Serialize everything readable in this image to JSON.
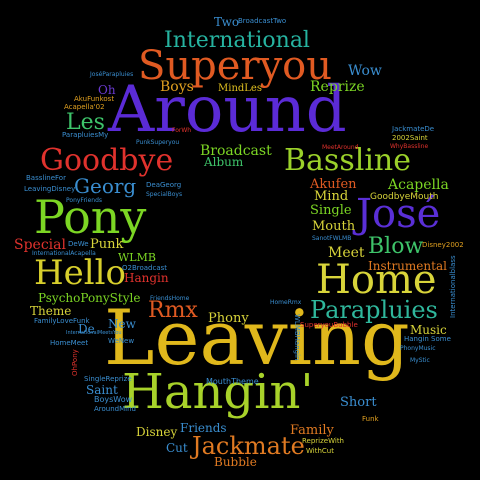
{
  "cloud": {
    "words": [
      {
        "id": "w_around",
        "text": "Around",
        "color": "#5b2bd6"
      },
      {
        "id": "w_leaving",
        "text": "Leaving",
        "color": "#e0b81c"
      },
      {
        "id": "w_hangin",
        "text": "Hangin'",
        "color": "#a8d22a"
      },
      {
        "id": "w_superyou",
        "text": "Superyou",
        "color": "#e05a22"
      },
      {
        "id": "w_international",
        "text": "International",
        "color": "#26b3a0"
      },
      {
        "id": "w_bassline",
        "text": "Bassline",
        "color": "#9bd12a"
      },
      {
        "id": "w_goodbye",
        "text": "Goodbye",
        "color": "#e0322d"
      },
      {
        "id": "w_pony",
        "text": "Pony",
        "color": "#7cd624"
      },
      {
        "id": "w_jose",
        "text": "José",
        "color": "#5a2fd6"
      },
      {
        "id": "w_home",
        "text": "Home",
        "color": "#d8d43a"
      },
      {
        "id": "w_hello",
        "text": "Hello",
        "color": "#d8cf2c"
      },
      {
        "id": "w_parapluies",
        "text": "Parapluies",
        "color": "#2fb79c"
      },
      {
        "id": "w_jackmate",
        "text": "Jackmate",
        "color": "#e07a22"
      },
      {
        "id": "w_rmx",
        "text": "Rmx",
        "color": "#e05a22"
      },
      {
        "id": "w_georg",
        "text": "Georg",
        "color": "#3a8ed0"
      },
      {
        "id": "w_blow",
        "text": "Blow",
        "color": "#3ec46a"
      },
      {
        "id": "w_les",
        "text": "Les",
        "color": "#3ec46a"
      },
      {
        "id": "w_broadcast",
        "text": "Broadcast",
        "color": "#7cd624"
      },
      {
        "id": "w_album",
        "text": "Album",
        "color": "#3ec46a"
      },
      {
        "id": "w_boys",
        "text": "Boys",
        "color": "#e0a020"
      },
      {
        "id": "w_mindles",
        "text": "MindLes",
        "color": "#e0c020"
      },
      {
        "id": "w_reprize",
        "text": "Reprize",
        "color": "#7cd624"
      },
      {
        "id": "w_wow",
        "text": "Wow",
        "color": "#3a8ed0"
      },
      {
        "id": "w_oh",
        "text": "Oh",
        "color": "#6a3ad0"
      },
      {
        "id": "w_two",
        "text": "Two",
        "color": "#3a8ed0"
      },
      {
        "id": "w_broadcasttwo",
        "text": "BroadcastTwo",
        "color": "#3a8ed0"
      },
      {
        "id": "w_akufen",
        "text": "Akufen",
        "color": "#e05a22"
      },
      {
        "id": "w_mind",
        "text": "Mind",
        "color": "#d8d43a"
      },
      {
        "id": "w_single",
        "text": "Single",
        "color": "#7cd624"
      },
      {
        "id": "w_mouth",
        "text": "Mouth",
        "color": "#d8d43a"
      },
      {
        "id": "w_acapella",
        "text": "Acapella",
        "color": "#7cd624"
      },
      {
        "id": "w_goodbyemouth",
        "text": "GoodbyeMouth",
        "color": "#d8d43a"
      },
      {
        "id": "w_meet",
        "text": "Meet",
        "color": "#d8d43a"
      },
      {
        "id": "w_instrumental",
        "text": "Instrumental",
        "color": "#e07a22"
      },
      {
        "id": "w_disney2002",
        "text": "Disney2002",
        "color": "#e0a020"
      },
      {
        "id": "w_special",
        "text": "Special",
        "color": "#e0322d"
      },
      {
        "id": "w_dewe",
        "text": "DeWe",
        "color": "#3a8ed0"
      },
      {
        "id": "w_punk",
        "text": "Punk",
        "color": "#d8d43a"
      },
      {
        "id": "w_wlmb",
        "text": "WLMB",
        "color": "#7cd624"
      },
      {
        "id": "w_hangin_small",
        "text": "Hangin",
        "color": "#e0322d"
      },
      {
        "id": "w_psychoponystyle",
        "text": "PsychoPonyStyle",
        "color": "#7cd624"
      },
      {
        "id": "w_theme",
        "text": "Theme",
        "color": "#d8d43a"
      },
      {
        "id": "w_de",
        "text": "De",
        "color": "#3a8ed0"
      },
      {
        "id": "w_new",
        "text": "New",
        "color": "#3a8ed0"
      },
      {
        "id": "w_phony",
        "text": "Phony",
        "color": "#d8d43a"
      },
      {
        "id": "w_music",
        "text": "Music",
        "color": "#d8d43a"
      },
      {
        "id": "w_saint",
        "text": "Saint",
        "color": "#3a8ed0"
      },
      {
        "id": "w_short",
        "text": "Short",
        "color": "#3a8ed0"
      },
      {
        "id": "w_family",
        "text": "Family",
        "color": "#e07a22"
      },
      {
        "id": "w_friends",
        "text": "Friends",
        "color": "#3a8ed0"
      },
      {
        "id": "w_disney",
        "text": "Disney",
        "color": "#d8d43a"
      },
      {
        "id": "w_cut",
        "text": "Cut",
        "color": "#3a8ed0"
      },
      {
        "id": "w_bubble",
        "text": "Bubble",
        "color": "#e07a22"
      },
      {
        "id": "w_funk",
        "text": "Funk",
        "color": "#e0a020"
      },
      {
        "id": "w_boyswow",
        "text": "BoysWow",
        "color": "#3a8ed0"
      },
      {
        "id": "w_aroundmind",
        "text": "AroundMind",
        "color": "#3a8ed0"
      },
      {
        "id": "w_singlereprize",
        "text": "SingleReprize",
        "color": "#3a8ed0"
      },
      {
        "id": "w_mouththeme",
        "text": "MouthTheme",
        "color": "#3a8ed0"
      },
      {
        "id": "w_repriewith",
        "text": "ReprizeWith",
        "color": "#d8d43a"
      },
      {
        "id": "w_withcut",
        "text": "WithCut",
        "color": "#d8d43a"
      },
      {
        "id": "w_homemeet",
        "text": "HomeMeet",
        "color": "#3a8ed0"
      },
      {
        "id": "w_wenew",
        "text": "WeNew",
        "color": "#3a8ed0"
      },
      {
        "id": "w_familylovefunk",
        "text": "FamilyLoveFunk",
        "color": "#3a8ed0"
      },
      {
        "id": "w_friendshome",
        "text": "FriendsHome",
        "color": "#3a8ed0"
      },
      {
        "id": "w_o2broadcast",
        "text": "O2Broadcast",
        "color": "#3a8ed0"
      },
      {
        "id": "w_internationalacapella",
        "text": "InternationalAcapella",
        "color": "#3a8ed0"
      },
      {
        "id": "w_ponyfriends",
        "text": "PonyFriends",
        "color": "#3a8ed0"
      },
      {
        "id": "w_leavingdisney",
        "text": "LeavingDisney",
        "color": "#3a8ed0"
      },
      {
        "id": "w_basslinefor",
        "text": "BasslineFor",
        "color": "#3a8ed0"
      },
      {
        "id": "w_deageorg",
        "text": "DeaGeorg",
        "color": "#3a8ed0"
      },
      {
        "id": "w_specialboys",
        "text": "SpecialBoys",
        "color": "#3a8ed0"
      },
      {
        "id": "w_paraplues_my",
        "text": "ParapluiesMy",
        "color": "#3a8ed0"
      },
      {
        "id": "w_akufunkost",
        "text": "AkuFunkost",
        "color": "#e0a020"
      },
      {
        "id": "w_acapellao2",
        "text": "Acapella'02",
        "color": "#e0a020"
      },
      {
        "id": "w_joseparapluies",
        "text": "JoséParapluies",
        "color": "#3a8ed0"
      },
      {
        "id": "w_jackmatede",
        "text": "JackmateDe",
        "color": "#3a8ed0"
      },
      {
        "id": "w_2002saint",
        "text": "2002Saint",
        "color": "#d8d43a"
      },
      {
        "id": "w_whybassline",
        "text": "WhyBassline",
        "color": "#e0322d"
      },
      {
        "id": "w_meetaround",
        "text": "MeetAround",
        "color": "#e0322d"
      },
      {
        "id": "w_punksuperyou",
        "text": "PunkSuperyou",
        "color": "#3a8ed0"
      },
      {
        "id": "w_sanotfwlmb",
        "text": "SanotFWLMB",
        "color": "#3a8ed0"
      },
      {
        "id": "w_superyoububble",
        "text": "SuperyouBubble",
        "color": "#e0322d"
      },
      {
        "id": "w_hanginsome",
        "text": "Hangin Some",
        "color": "#3a8ed0"
      },
      {
        "id": "w_phonymusic",
        "text": "PhonyMusic",
        "color": "#3a8ed0"
      },
      {
        "id": "w_mystic",
        "text": "MyStic",
        "color": "#3a8ed0"
      },
      {
        "id": "w_internationalbrass",
        "text": "Internationalblass",
        "color": "#3a8ed0"
      },
      {
        "id": "w_ohpony",
        "text": "OhPony",
        "color": "#e0322d"
      },
      {
        "id": "w_wlmbhangin",
        "text": "WLMBHangin",
        "color": "#3a8ed0"
      },
      {
        "id": "w_forwh",
        "text": "ForWh",
        "color": "#e0322d"
      },
      {
        "id": "w_homermx",
        "text": "HomeRmx",
        "color": "#3a8ed0"
      },
      {
        "id": "w_internationalmeetsyou",
        "text": "InternationalMeetsYou",
        "color": "#3a8ed0"
      }
    ]
  }
}
